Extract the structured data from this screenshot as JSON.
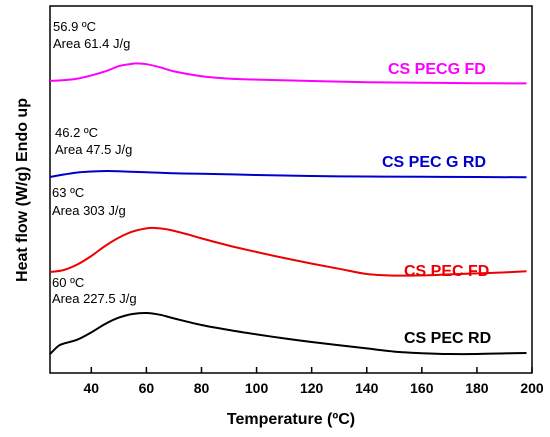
{
  "chart_data": {
    "type": "line",
    "xlabel": "Temperature (ºC)",
    "ylabel": "Heat flow (W/g) Endo up",
    "xlim": [
      25,
      200
    ],
    "xticks": [
      40,
      60,
      80,
      100,
      120,
      140,
      160,
      180,
      200
    ],
    "y_tick_labels_shown": false,
    "grid": false,
    "series": [
      {
        "name": "CS PECG FD",
        "color": "#ff00ff",
        "x": [
          25,
          35,
          45,
          50,
          55,
          57,
          60,
          65,
          70,
          80,
          90,
          100,
          120,
          140,
          160,
          180,
          198
        ],
        "y": [
          0.0,
          0.1,
          0.4,
          0.62,
          0.72,
          0.73,
          0.7,
          0.57,
          0.4,
          0.2,
          0.1,
          0.06,
          0.0,
          -0.05,
          -0.07,
          -0.09,
          -0.1
        ]
      },
      {
        "name": "CS PEC G RD",
        "color": "#0000cc",
        "x": [
          25,
          30,
          35,
          40,
          46,
          52,
          60,
          70,
          80,
          100,
          120,
          140,
          160,
          180,
          198
        ],
        "y": [
          -0.04,
          0.06,
          0.14,
          0.18,
          0.2,
          0.18,
          0.15,
          0.11,
          0.09,
          0.04,
          0.0,
          -0.02,
          -0.03,
          -0.04,
          -0.05
        ]
      },
      {
        "name": "CS PEC FD",
        "color": "#ee0000",
        "x": [
          25,
          30,
          35,
          40,
          45,
          50,
          55,
          60,
          63,
          68,
          75,
          80,
          90,
          100,
          110,
          120,
          130,
          140,
          150,
          160,
          170,
          180,
          190,
          198
        ],
        "y": [
          0.0,
          0.1,
          0.38,
          0.8,
          1.3,
          1.72,
          2.02,
          2.18,
          2.2,
          2.12,
          1.88,
          1.68,
          1.32,
          1.0,
          0.7,
          0.42,
          0.16,
          -0.1,
          -0.18,
          -0.17,
          -0.12,
          -0.07,
          -0.02,
          0.04
        ]
      },
      {
        "name": "CS PEC RD",
        "color": "#000000",
        "x": [
          25,
          28,
          30,
          35,
          40,
          45,
          50,
          55,
          60,
          65,
          70,
          80,
          90,
          100,
          110,
          120,
          130,
          140,
          150,
          160,
          170,
          180,
          190,
          198
        ],
        "y": [
          0.0,
          0.4,
          0.52,
          0.72,
          1.08,
          1.5,
          1.82,
          2.0,
          2.05,
          1.96,
          1.78,
          1.45,
          1.2,
          0.98,
          0.78,
          0.6,
          0.44,
          0.28,
          0.12,
          0.04,
          0.0,
          0.0,
          0.03,
          0.05
        ]
      }
    ],
    "annotations": [
      {
        "line1": "56.9 ºC",
        "line2": "Area 61.4 J/g"
      },
      {
        "line1": "46.2 ºC",
        "line2": "Area 47.5 J/g"
      },
      {
        "line1": "63 ºC",
        "line2": "Area 303 J/g"
      },
      {
        "line1": "60 ºC",
        "line2": "Area 227.5 J/g"
      }
    ]
  }
}
